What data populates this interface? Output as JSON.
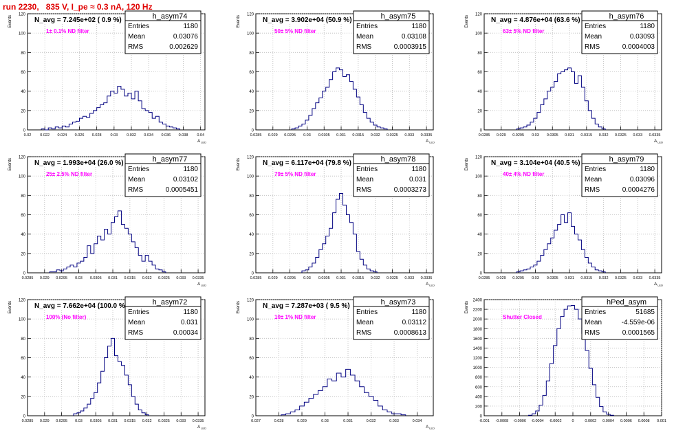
{
  "header": {
    "title": "run 2230,   835 V, I_pe ≈ 0.3 nA, 120 Hz"
  },
  "colors": {
    "title": "#e00000",
    "annotation": "#ff00ff",
    "histogram": "#000080",
    "grid": "#bbbbbb"
  },
  "chart_data": [
    {
      "type": "bar",
      "name": "h_asym74",
      "avg_label": "N_avg = 7.245e+02 ( 0.9 %)",
      "annotation": "1± 0.1% ND filter",
      "stats": [
        [
          "Entries",
          "1180"
        ],
        [
          "Mean",
          "0.03076"
        ],
        [
          "RMS",
          "0.002629"
        ]
      ],
      "ylabel": "Events",
      "xlabel": "A_{LED}",
      "xlim": [
        0.02,
        0.0405
      ],
      "ylim": [
        0,
        120
      ],
      "xticks": [
        0.02,
        0.022,
        0.024,
        0.026,
        0.028,
        0.03,
        0.032,
        0.034,
        0.036,
        0.038,
        0.04
      ],
      "xticklabels": [
        "0.02",
        "0.022",
        "0.024",
        "0.026",
        "0.028",
        "0.03",
        "0.032",
        "0.034",
        "0.036",
        "0.038",
        "0.04"
      ],
      "yticks": [
        0,
        20,
        40,
        60,
        80,
        100,
        120
      ],
      "grid": true,
      "x": [
        0.0218,
        0.0222,
        0.0226,
        0.023,
        0.0234,
        0.0238,
        0.0242,
        0.0246,
        0.025,
        0.0254,
        0.0258,
        0.0262,
        0.0266,
        0.027,
        0.0274,
        0.0278,
        0.0282,
        0.0286,
        0.029,
        0.0294,
        0.0298,
        0.0302,
        0.0306,
        0.031,
        0.0314,
        0.0318,
        0.0322,
        0.0326,
        0.033,
        0.0334,
        0.0338,
        0.0342,
        0.0346,
        0.035,
        0.0354,
        0.0358,
        0.0362,
        0.0366,
        0.037,
        0.0374
      ],
      "values": [
        1,
        0,
        2,
        1,
        3,
        2,
        4,
        3,
        6,
        8,
        9,
        12,
        14,
        13,
        17,
        20,
        23,
        26,
        28,
        35,
        40,
        38,
        45,
        42,
        35,
        38,
        32,
        40,
        30,
        22,
        20,
        18,
        12,
        14,
        8,
        6,
        4,
        3,
        2,
        1
      ]
    },
    {
      "type": "bar",
      "name": "h_asym75",
      "avg_label": "N_avg = 3.902e+04 (50.9 %)",
      "annotation": "50± 5% ND filter",
      "stats": [
        [
          "Entries",
          "1180"
        ],
        [
          "Mean",
          "0.03108"
        ],
        [
          "RMS",
          "0.0003915"
        ]
      ],
      "ylabel": "Events",
      "xlabel": "A_{LED}",
      "xlim": [
        0.0285,
        0.0337
      ],
      "ylim": [
        0,
        120
      ],
      "xticks": [
        0.0285,
        0.029,
        0.0295,
        0.03,
        0.0305,
        0.031,
        0.0315,
        0.032,
        0.0325,
        0.033,
        0.0335
      ],
      "xticklabels": [
        "0.0285",
        "0.029",
        "0.0295",
        "0.03",
        "0.0305",
        "0.031",
        "0.0315",
        "0.032",
        "0.0325",
        "0.033",
        "0.0335"
      ],
      "yticks": [
        0,
        20,
        40,
        60,
        80,
        100,
        120
      ],
      "grid": true,
      "x": [
        0.0296,
        0.0297,
        0.0298,
        0.0299,
        0.03,
        0.0301,
        0.0302,
        0.0303,
        0.0304,
        0.0305,
        0.0306,
        0.0307,
        0.0308,
        0.0309,
        0.031,
        0.0311,
        0.0312,
        0.0313,
        0.0314,
        0.0315,
        0.0316,
        0.0317,
        0.0318,
        0.0319,
        0.032,
        0.0321,
        0.0322,
        0.0323
      ],
      "values": [
        1,
        2,
        4,
        6,
        10,
        15,
        22,
        28,
        33,
        40,
        44,
        52,
        60,
        64,
        62,
        55,
        57,
        50,
        42,
        34,
        26,
        18,
        12,
        8,
        5,
        3,
        2,
        1
      ]
    },
    {
      "type": "bar",
      "name": "h_asym76",
      "avg_label": "N_avg = 4.876e+04 (63.6 %)",
      "annotation": "63± 5% ND filter",
      "stats": [
        [
          "Entries",
          "1180"
        ],
        [
          "Mean",
          "0.03093"
        ],
        [
          "RMS",
          "0.0004003"
        ]
      ],
      "ylabel": "Events",
      "xlabel": "A_{LED}",
      "xlim": [
        0.0285,
        0.0337
      ],
      "ylim": [
        0,
        120
      ],
      "xticks": [
        0.0285,
        0.029,
        0.0295,
        0.03,
        0.0305,
        0.031,
        0.0315,
        0.032,
        0.0325,
        0.033,
        0.0335
      ],
      "xticklabels": [
        "0.0285",
        "0.029",
        "0.0295",
        "0.03",
        "0.0305",
        "0.031",
        "0.0315",
        "0.032",
        "0.0325",
        "0.033",
        "0.0335"
      ],
      "yticks": [
        0,
        20,
        40,
        60,
        80,
        100,
        120
      ],
      "grid": true,
      "x": [
        0.0295,
        0.0296,
        0.0297,
        0.0298,
        0.0299,
        0.03,
        0.0301,
        0.0302,
        0.0303,
        0.0304,
        0.0305,
        0.0306,
        0.0307,
        0.0308,
        0.0309,
        0.031,
        0.0311,
        0.0312,
        0.0313,
        0.0314,
        0.0315,
        0.0316,
        0.0317,
        0.0318,
        0.0319,
        0.032
      ],
      "values": [
        1,
        2,
        3,
        5,
        8,
        12,
        18,
        26,
        32,
        40,
        44,
        50,
        58,
        60,
        62,
        64,
        60,
        48,
        56,
        44,
        30,
        20,
        12,
        6,
        3,
        1
      ]
    },
    {
      "type": "bar",
      "name": "h_asym77",
      "avg_label": "N_avg = 1.993e+04 (26.0 %)",
      "annotation": "25± 2.5% ND filter",
      "stats": [
        [
          "Entries",
          "1180"
        ],
        [
          "Mean",
          "0.03102"
        ],
        [
          "RMS",
          "0.0005451"
        ]
      ],
      "ylabel": "Events",
      "xlabel": "A_{LED}",
      "xlim": [
        0.0285,
        0.0337
      ],
      "ylim": [
        0,
        120
      ],
      "xticks": [
        0.0285,
        0.029,
        0.0295,
        0.03,
        0.0305,
        0.031,
        0.0315,
        0.032,
        0.0325,
        0.033,
        0.0335
      ],
      "xticklabels": [
        "0.0285",
        "0.029",
        "0.0295",
        "0.03",
        "0.0305",
        "0.031",
        "0.0315",
        "0.032",
        "0.0325",
        "0.033",
        "0.0335"
      ],
      "yticks": [
        0,
        20,
        40,
        60,
        80,
        100,
        120
      ],
      "grid": true,
      "x": [
        0.0292,
        0.0293,
        0.0294,
        0.0295,
        0.0296,
        0.0297,
        0.0298,
        0.0299,
        0.03,
        0.0301,
        0.0302,
        0.0303,
        0.0304,
        0.0305,
        0.0306,
        0.0307,
        0.0308,
        0.0309,
        0.031,
        0.0311,
        0.0312,
        0.0313,
        0.0314,
        0.0315,
        0.0316,
        0.0317,
        0.0318,
        0.0319,
        0.032,
        0.0321,
        0.0322,
        0.0323,
        0.0324,
        0.0325
      ],
      "values": [
        1,
        1,
        3,
        2,
        4,
        6,
        8,
        6,
        10,
        12,
        16,
        28,
        20,
        30,
        38,
        34,
        45,
        40,
        52,
        58,
        64,
        50,
        46,
        40,
        32,
        26,
        18,
        12,
        18,
        12,
        8,
        4,
        3,
        1
      ]
    },
    {
      "type": "bar",
      "name": "h_asym78",
      "avg_label": "N_avg = 6.117e+04 (79.8 %)",
      "annotation": "79± 5% ND filter",
      "stats": [
        [
          "Entries",
          "1180"
        ],
        [
          "Mean",
          "0.031"
        ],
        [
          "RMS",
          "0.0003273"
        ]
      ],
      "ylabel": "Events",
      "xlabel": "A_{LED}",
      "xlim": [
        0.0285,
        0.0337
      ],
      "ylim": [
        0,
        120
      ],
      "xticks": [
        0.0285,
        0.029,
        0.0295,
        0.03,
        0.0305,
        0.031,
        0.0315,
        0.032,
        0.0325,
        0.033,
        0.0335
      ],
      "xticklabels": [
        "0.0285",
        "0.029",
        "0.0295",
        "0.03",
        "0.0305",
        "0.031",
        "0.0315",
        "0.032",
        "0.0325",
        "0.033",
        "0.0335"
      ],
      "yticks": [
        0,
        20,
        40,
        60,
        80,
        100,
        120
      ],
      "grid": true,
      "x": [
        0.0299,
        0.03,
        0.0301,
        0.0302,
        0.0303,
        0.0304,
        0.0305,
        0.0306,
        0.0307,
        0.0308,
        0.0309,
        0.031,
        0.0311,
        0.0312,
        0.0313,
        0.0314,
        0.0315,
        0.0316,
        0.0317,
        0.0318,
        0.0319,
        0.032
      ],
      "values": [
        2,
        3,
        6,
        10,
        16,
        24,
        30,
        38,
        46,
        62,
        76,
        82,
        70,
        60,
        52,
        40,
        22,
        14,
        8,
        4,
        2,
        1
      ]
    },
    {
      "type": "bar",
      "name": "h_asym79",
      "avg_label": "N_avg = 3.104e+04 (40.5 %)",
      "annotation": "40± 4% ND filter",
      "stats": [
        [
          "Entries",
          "1180"
        ],
        [
          "Mean",
          "0.03096"
        ],
        [
          "RMS",
          "0.0004276"
        ]
      ],
      "ylabel": "Events",
      "xlabel": "A_{LED}",
      "xlim": [
        0.0285,
        0.0337
      ],
      "ylim": [
        0,
        120
      ],
      "xticks": [
        0.0285,
        0.029,
        0.0295,
        0.03,
        0.0305,
        0.031,
        0.0315,
        0.032,
        0.0325,
        0.033,
        0.0335
      ],
      "xticklabels": [
        "0.0285",
        "0.029",
        "0.0295",
        "0.03",
        "0.0305",
        "0.031",
        "0.0315",
        "0.032",
        "0.0325",
        "0.033",
        "0.0335"
      ],
      "yticks": [
        0,
        20,
        40,
        60,
        80,
        100,
        120
      ],
      "grid": true,
      "x": [
        0.0295,
        0.0296,
        0.0297,
        0.0298,
        0.0299,
        0.03,
        0.0301,
        0.0302,
        0.0303,
        0.0304,
        0.0305,
        0.0306,
        0.0307,
        0.0308,
        0.0309,
        0.031,
        0.0311,
        0.0312,
        0.0313,
        0.0314,
        0.0315,
        0.0316,
        0.0317,
        0.0318,
        0.0319,
        0.032
      ],
      "values": [
        1,
        2,
        3,
        4,
        6,
        8,
        12,
        18,
        24,
        30,
        36,
        44,
        50,
        60,
        52,
        62,
        48,
        40,
        34,
        24,
        16,
        10,
        6,
        3,
        2,
        1
      ]
    },
    {
      "type": "bar",
      "name": "h_asym72",
      "avg_label": "N_avg = 7.662e+04 (100.0 %)",
      "annotation": "100% (No filter)",
      "stats": [
        [
          "Entries",
          "1180"
        ],
        [
          "Mean",
          "0.031"
        ],
        [
          "RMS",
          "0.00034"
        ]
      ],
      "ylabel": "Events",
      "xlabel": "A_{LED}",
      "xlim": [
        0.0285,
        0.0337
      ],
      "ylim": [
        0,
        120
      ],
      "xticks": [
        0.0285,
        0.029,
        0.0295,
        0.03,
        0.0305,
        0.031,
        0.0315,
        0.032,
        0.0325,
        0.033,
        0.0335
      ],
      "xticklabels": [
        "0.0285",
        "0.029",
        "0.0295",
        "0.03",
        "0.0305",
        "0.031",
        "0.0315",
        "0.032",
        "0.0325",
        "0.033",
        "0.0335"
      ],
      "yticks": [
        0,
        20,
        40,
        60,
        80,
        100,
        120
      ],
      "grid": true,
      "x": [
        0.0299,
        0.03,
        0.0301,
        0.0302,
        0.0303,
        0.0304,
        0.0305,
        0.0306,
        0.0307,
        0.0308,
        0.0309,
        0.031,
        0.0311,
        0.0312,
        0.0313,
        0.0314,
        0.0315,
        0.0316,
        0.0317,
        0.0318,
        0.0319,
        0.032
      ],
      "values": [
        2,
        3,
        5,
        8,
        12,
        18,
        24,
        34,
        46,
        60,
        72,
        80,
        62,
        56,
        52,
        42,
        32,
        20,
        12,
        6,
        3,
        1
      ]
    },
    {
      "type": "bar",
      "name": "h_asym73",
      "avg_label": "N_avg = 7.287e+03 ( 9.5 %)",
      "annotation": "10± 1% ND filter",
      "stats": [
        [
          "Entries",
          "1180"
        ],
        [
          "Mean",
          "0.03112"
        ],
        [
          "RMS",
          "0.0008613"
        ]
      ],
      "ylabel": "Events",
      "xlabel": "A_{LED}",
      "xlim": [
        0.027,
        0.0347
      ],
      "ylim": [
        0,
        120
      ],
      "xticks": [
        0.027,
        0.028,
        0.029,
        0.03,
        0.031,
        0.032,
        0.033,
        0.034
      ],
      "xticklabels": [
        "0.027",
        "0.028",
        "0.029",
        "0.03",
        "0.031",
        "0.032",
        "0.033",
        "0.034"
      ],
      "yticks": [
        0,
        20,
        40,
        60,
        80,
        100,
        120
      ],
      "grid": true,
      "x": [
        0.0282,
        0.0284,
        0.0286,
        0.0288,
        0.029,
        0.0292,
        0.0294,
        0.0296,
        0.0298,
        0.03,
        0.0302,
        0.0304,
        0.0306,
        0.0308,
        0.031,
        0.0312,
        0.0314,
        0.0316,
        0.0318,
        0.032,
        0.0322,
        0.0324,
        0.0326,
        0.0328,
        0.033,
        0.0332,
        0.0334
      ],
      "values": [
        1,
        2,
        4,
        6,
        10,
        14,
        18,
        22,
        26,
        30,
        38,
        36,
        44,
        40,
        48,
        42,
        36,
        30,
        24,
        20,
        16,
        10,
        6,
        4,
        2,
        2,
        1
      ]
    },
    {
      "type": "bar",
      "name": "hPed_asym",
      "avg_label": "",
      "annotation": "Shutter Closed",
      "stats": [
        [
          "Entries",
          "51685"
        ],
        [
          "Mean",
          "-4.559e-06"
        ],
        [
          "RMS",
          "0.0001565"
        ]
      ],
      "ylabel": "Events",
      "xlabel": "",
      "xlim": [
        -0.001,
        0.001
      ],
      "ylim": [
        0,
        2400
      ],
      "xticks": [
        -0.001,
        -0.0008,
        -0.0006,
        -0.0004,
        -0.0002,
        0,
        0.0002,
        0.0004,
        0.0006,
        0.0008,
        0.001
      ],
      "xticklabels": [
        "-0.001",
        "-0.0008",
        "-0.0006",
        "-0.0004",
        "-0.0002",
        "0",
        "0.0002",
        "0.0004",
        "0.0006",
        "0.0008",
        "0.001"
      ],
      "yticks": [
        0,
        200,
        400,
        600,
        800,
        1000,
        1200,
        1400,
        1600,
        1800,
        2000,
        2200,
        2400
      ],
      "grid": true,
      "x": [
        -0.00048,
        -0.00044,
        -0.0004,
        -0.00036,
        -0.00032,
        -0.00028,
        -0.00024,
        -0.0002,
        -0.00016,
        -0.00012,
        -8e-05,
        -4e-05,
        0,
        4e-05,
        8e-05,
        0.00012,
        0.00016,
        0.0002,
        0.00024,
        0.00028,
        0.00032,
        0.00036,
        0.0004,
        0.00044
      ],
      "values": [
        10,
        40,
        100,
        220,
        420,
        720,
        1080,
        1450,
        1800,
        2050,
        2200,
        2270,
        2280,
        2200,
        2000,
        1700,
        1350,
        980,
        640,
        380,
        190,
        80,
        30,
        10
      ]
    }
  ]
}
